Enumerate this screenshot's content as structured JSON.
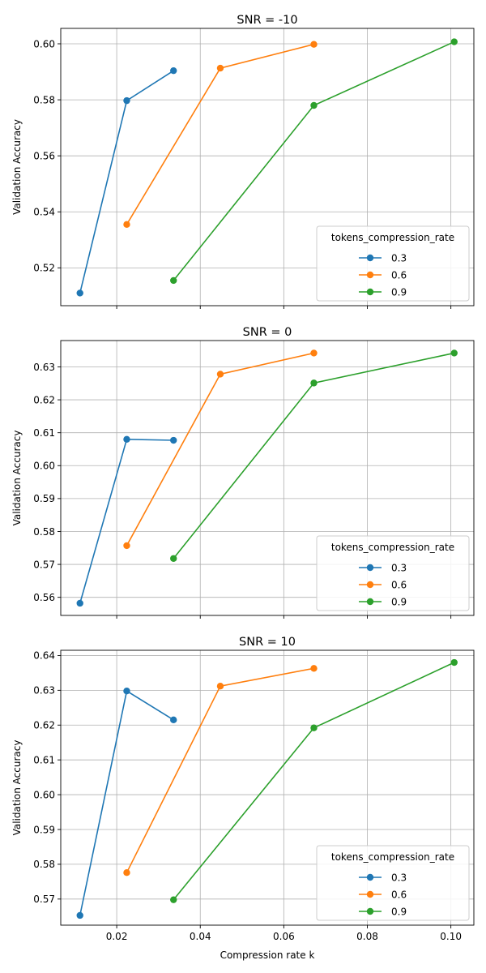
{
  "chart_data": [
    {
      "type": "line",
      "title": "SNR = -10",
      "xlabel": "",
      "ylabel": "Validation Accuracy",
      "xlim": [
        0.0066,
        0.1055
      ],
      "ylim": [
        0.5065,
        0.6055
      ],
      "xticks": [
        0.02,
        0.04,
        0.06,
        0.08,
        0.1
      ],
      "xtick_labels": [
        "",
        "",
        "",
        "",
        ""
      ],
      "yticks": [
        0.52,
        0.54,
        0.56,
        0.58,
        0.6
      ],
      "ytick_labels": [
        "0.52",
        "0.54",
        "0.56",
        "0.58",
        "0.60"
      ],
      "grid": true,
      "legend": {
        "title": "tokens_compression_rate",
        "placement": "lower right"
      },
      "series": [
        {
          "name": "0.3",
          "color": "#1f77b4",
          "x": [
            0.0112,
            0.0224,
            0.0336
          ],
          "y": [
            0.511,
            0.5797,
            0.5904
          ]
        },
        {
          "name": "0.6",
          "color": "#ff7f0e",
          "x": [
            0.0224,
            0.0448,
            0.0672
          ],
          "y": [
            0.5355,
            0.5913,
            0.5998
          ]
        },
        {
          "name": "0.9",
          "color": "#2ca02c",
          "x": [
            0.0336,
            0.0672,
            0.1008
          ],
          "y": [
            0.5155,
            0.578,
            0.6007
          ]
        }
      ]
    },
    {
      "type": "line",
      "title": "SNR = 0",
      "xlabel": "",
      "ylabel": "Validation Accuracy",
      "xlim": [
        0.0066,
        0.1055
      ],
      "ylim": [
        0.5545,
        0.638
      ],
      "xticks": [
        0.02,
        0.04,
        0.06,
        0.08,
        0.1
      ],
      "xtick_labels": [
        "",
        "",
        "",
        "",
        ""
      ],
      "yticks": [
        0.56,
        0.57,
        0.58,
        0.59,
        0.6,
        0.61,
        0.62,
        0.63
      ],
      "ytick_labels": [
        "0.56",
        "0.57",
        "0.58",
        "0.59",
        "0.60",
        "0.61",
        "0.62",
        "0.63"
      ],
      "grid": true,
      "legend": {
        "title": "tokens_compression_rate",
        "placement": "lower right"
      },
      "series": [
        {
          "name": "0.3",
          "color": "#1f77b4",
          "x": [
            0.0112,
            0.0224,
            0.0336
          ],
          "y": [
            0.5582,
            0.608,
            0.6077
          ]
        },
        {
          "name": "0.6",
          "color": "#ff7f0e",
          "x": [
            0.0224,
            0.0448,
            0.0672
          ],
          "y": [
            0.5757,
            0.6278,
            0.6342
          ]
        },
        {
          "name": "0.9",
          "color": "#2ca02c",
          "x": [
            0.0336,
            0.0672,
            0.1008
          ],
          "y": [
            0.5718,
            0.6251,
            0.6342
          ]
        }
      ]
    },
    {
      "type": "line",
      "title": "SNR = 10",
      "xlabel": "Compression rate k",
      "ylabel": "Validation Accuracy",
      "xlim": [
        0.0066,
        0.1055
      ],
      "ylim": [
        0.5625,
        0.6415
      ],
      "xticks": [
        0.02,
        0.04,
        0.06,
        0.08,
        0.1
      ],
      "xtick_labels": [
        "0.02",
        "0.04",
        "0.06",
        "0.08",
        "0.10"
      ],
      "yticks": [
        0.57,
        0.58,
        0.59,
        0.6,
        0.61,
        0.62,
        0.63,
        0.64
      ],
      "ytick_labels": [
        "0.57",
        "0.58",
        "0.59",
        "0.60",
        "0.61",
        "0.62",
        "0.63",
        "0.64"
      ],
      "grid": true,
      "legend": {
        "title": "tokens_compression_rate",
        "placement": "lower right"
      },
      "series": [
        {
          "name": "0.3",
          "color": "#1f77b4",
          "x": [
            0.0112,
            0.0224,
            0.0336
          ],
          "y": [
            0.5653,
            0.6298,
            0.6215
          ]
        },
        {
          "name": "0.6",
          "color": "#ff7f0e",
          "x": [
            0.0224,
            0.0448,
            0.0672
          ],
          "y": [
            0.5776,
            0.6312,
            0.6363
          ]
        },
        {
          "name": "0.9",
          "color": "#2ca02c",
          "x": [
            0.0336,
            0.0672,
            0.1008
          ],
          "y": [
            0.5698,
            0.6192,
            0.638
          ]
        }
      ]
    }
  ]
}
